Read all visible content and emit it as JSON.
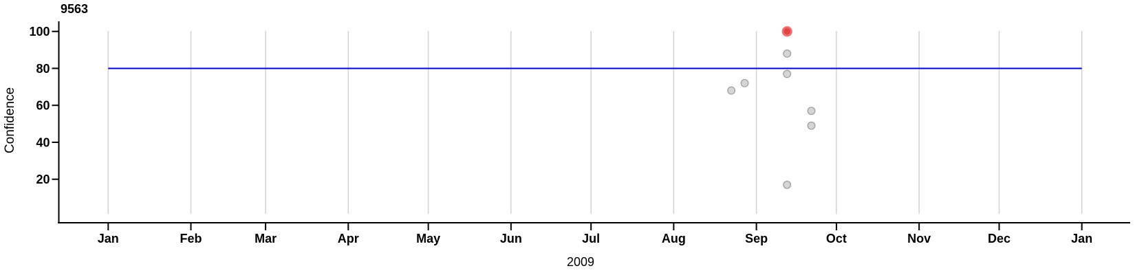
{
  "chart_data": {
    "type": "scatter",
    "title": "9563",
    "xlabel": "2009",
    "ylabel": "Confidence",
    "x_axis": {
      "kind": "time",
      "tick_labels": [
        "Jan",
        "Feb",
        "Mar",
        "Apr",
        "May",
        "Jun",
        "Jul",
        "Aug",
        "Sep",
        "Oct",
        "Nov",
        "Dec",
        "Jan"
      ],
      "tick_days_from_jan1": [
        0,
        31,
        59,
        90,
        120,
        151,
        181,
        212,
        243,
        273,
        304,
        334,
        365
      ],
      "grid": true
    },
    "y_axis": {
      "tick_values": [
        20,
        40,
        60,
        80,
        100
      ],
      "grid": false
    },
    "reference_line": {
      "value": 80
    },
    "points": [
      {
        "approx_date": "Aug 23",
        "day_of_year": 233.6,
        "value": 68,
        "highlight": false
      },
      {
        "approx_date": "Aug 28",
        "day_of_year": 238.6,
        "value": 72,
        "highlight": false
      },
      {
        "approx_date": "Sep 12",
        "day_of_year": 254.5,
        "value": 100,
        "highlight": true
      },
      {
        "approx_date": "Sep 12",
        "day_of_year": 254.5,
        "value": 88,
        "highlight": false
      },
      {
        "approx_date": "Sep 12",
        "day_of_year": 254.5,
        "value": 77,
        "highlight": false
      },
      {
        "approx_date": "Sep 12",
        "day_of_year": 254.5,
        "value": 17,
        "highlight": false
      },
      {
        "approx_date": "Sep 21",
        "day_of_year": 263.6,
        "value": 57,
        "highlight": false
      },
      {
        "approx_date": "Sep 21",
        "day_of_year": 263.6,
        "value": 49,
        "highlight": false
      }
    ],
    "colors": {
      "reference_line": "#0000cc",
      "grid": "#d2d2d2",
      "axis": "#000000",
      "text": "#000000",
      "point_fill": "#d5d5d5",
      "point_stroke": "#a0a0a0",
      "highlight_fill": "#e14646",
      "highlight_stroke": "#ee7070"
    }
  }
}
